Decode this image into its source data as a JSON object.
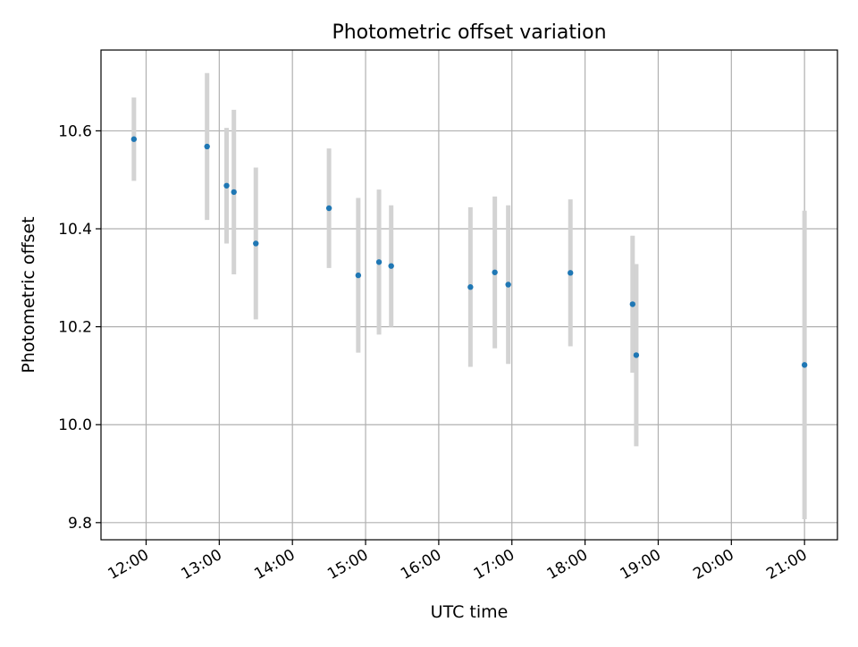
{
  "chart_data": {
    "type": "scatter",
    "title": "Photometric offset variation",
    "xlabel": "UTC time",
    "ylabel": "Photometric offset",
    "xlim": [
      "11:23",
      "21:27"
    ],
    "ylim": [
      9.765,
      10.765
    ],
    "grid": true,
    "x_ticks": [
      "12:00",
      "13:00",
      "14:00",
      "15:00",
      "16:00",
      "17:00",
      "18:00",
      "19:00",
      "20:00",
      "21:00"
    ],
    "y_ticks": [
      9.8,
      10.0,
      10.2,
      10.4,
      10.6
    ],
    "y_tick_labels": [
      "9.8",
      "10.0",
      "10.2",
      "10.4",
      "10.6"
    ],
    "series": [
      {
        "x": [
          "11:50",
          "12:50",
          "13:06",
          "13:12",
          "13:30",
          "14:30",
          "14:54",
          "15:11",
          "15:21",
          "16:26",
          "16:46",
          "16:57",
          "17:48",
          "18:39",
          "18:42",
          "21:00"
        ],
        "y": [
          10.583,
          10.568,
          10.488,
          10.475,
          10.37,
          10.442,
          10.305,
          10.332,
          10.324,
          10.281,
          10.311,
          10.286,
          10.31,
          10.246,
          10.142,
          10.122
        ],
        "yerr": [
          0.085,
          0.15,
          0.118,
          0.168,
          0.155,
          0.122,
          0.158,
          0.148,
          0.124,
          0.163,
          0.155,
          0.162,
          0.15,
          0.14,
          0.186,
          0.315
        ],
        "marker_color": "#1f77b4",
        "errorbar_color": "#d3d3d3"
      }
    ]
  }
}
